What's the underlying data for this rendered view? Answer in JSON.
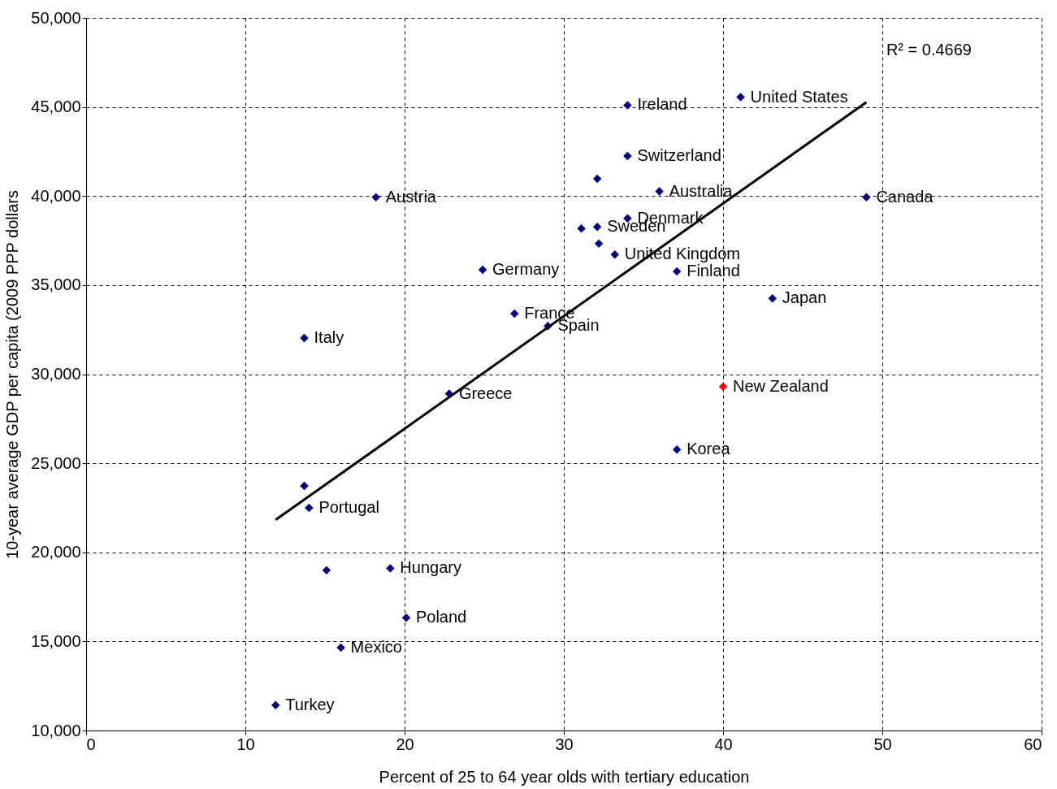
{
  "chart_data": {
    "type": "scatter",
    "xlabel": "Percent of 25 to 64 year olds with tertiary education",
    "ylabel": "10-year average GDP per capita (2009 PPP dollars",
    "xlim": [
      0,
      60
    ],
    "xticks": [
      0,
      10,
      20,
      30,
      40,
      50,
      60
    ],
    "ylim": [
      10000,
      50000
    ],
    "yticks": [
      {
        "value": 10000,
        "label": "10,000"
      },
      {
        "value": 15000,
        "label": "15,000"
      },
      {
        "value": 20000,
        "label": "20,000"
      },
      {
        "value": 25000,
        "label": "25,000"
      },
      {
        "value": 30000,
        "label": "30,000"
      },
      {
        "value": 35000,
        "label": "35,000"
      },
      {
        "value": 40000,
        "label": "40,000"
      },
      {
        "value": 45000,
        "label": "45,000"
      },
      {
        "value": 50000,
        "label": "50,000"
      }
    ],
    "grid": true,
    "marker": "diamond",
    "annotations": [
      "R² = 0.4669"
    ],
    "series": [
      {
        "color": "#000080",
        "x": [
          41.1,
          34.0,
          34.0,
          32.1,
          36.0,
          18.2,
          49.0,
          34.0,
          31.1,
          32.1,
          32.2,
          33.2,
          24.9,
          37.1,
          43.1,
          26.9,
          29.0,
          13.7,
          22.8,
          37.1,
          13.7,
          14.0,
          15.1,
          19.1,
          20.1,
          16.0,
          11.9
        ],
        "values": [
          45550,
          45100,
          42250,
          40970,
          40260,
          39930,
          39930,
          38750,
          38180,
          38270,
          37330,
          36720,
          35860,
          35770,
          34250,
          33400,
          32700,
          32030,
          28900,
          25770,
          23730,
          22500,
          19000,
          19100,
          16330,
          14650,
          11420
        ],
        "value_labels": [
          "United States",
          "Ireland",
          "Switzerland",
          null,
          "Australia",
          "Austria",
          "Canada",
          "Denmark",
          null,
          "Sweden",
          null,
          "United Kingdom",
          "Germany",
          "Finland",
          "Japan",
          "France",
          "Spain",
          "Italy",
          "Greece",
          "Korea",
          null,
          "Portugal",
          null,
          "Hungary",
          "Poland",
          "Mexico",
          "Turkey"
        ]
      },
      {
        "color": "#ff0000",
        "x": [
          40.0
        ],
        "values": [
          29300
        ],
        "value_labels": [
          "New Zealand"
        ]
      },
      {
        "type": "line",
        "marker": "none",
        "color": "#000000",
        "x": [
          11.9,
          49.0
        ],
        "values": [
          21820,
          45270
        ]
      }
    ]
  }
}
